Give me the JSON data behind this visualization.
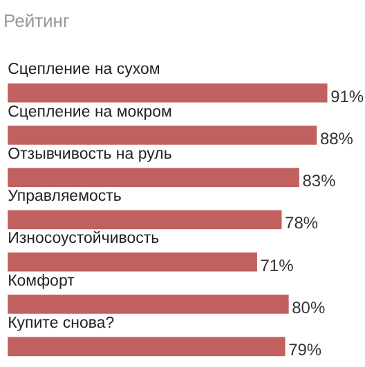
{
  "chart_data": {
    "type": "bar",
    "orientation": "horizontal",
    "title": "Рейтинг",
    "categories": [
      "Сцепление на сухом",
      "Сцепление на мокром",
      "Отзывчивость на руль",
      "Управляемость",
      "Износоустойчивость",
      "Комфорт",
      "Купите снова?"
    ],
    "values": [
      91,
      88,
      83,
      78,
      71,
      80,
      79
    ],
    "value_labels": [
      "91%",
      "88%",
      "83%",
      "78%",
      "71%",
      "80%",
      "79%"
    ],
    "color": "#c0605f"
  }
}
